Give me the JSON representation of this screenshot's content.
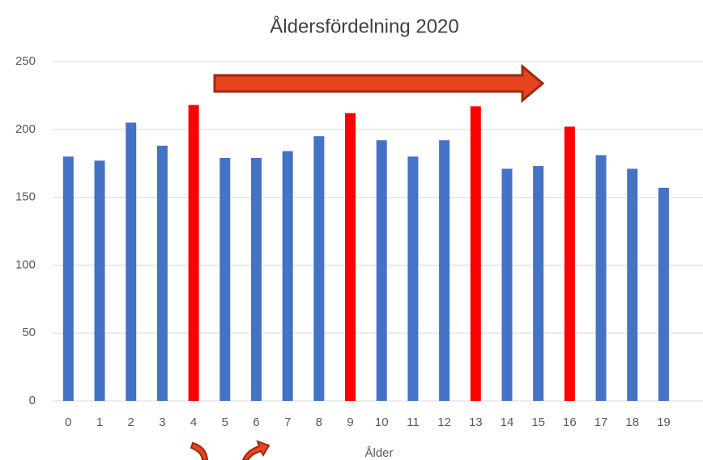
{
  "chart_data": {
    "type": "bar",
    "title": "Åldersfördelning 2020",
    "x_label": "Ålder",
    "categories": [
      "0",
      "1",
      "2",
      "3",
      "4",
      "5",
      "6",
      "7",
      "8",
      "9",
      "10",
      "11",
      "12",
      "13",
      "14",
      "15",
      "16",
      "17",
      "18",
      "19"
    ],
    "values": [
      180,
      177,
      205,
      188,
      218,
      179,
      179,
      184,
      195,
      212,
      192,
      180,
      192,
      217,
      171,
      173,
      202,
      181,
      171,
      157
    ],
    "colors": [
      "#4472c4",
      "#4472c4",
      "#4472c4",
      "#4472c4",
      "#ff0000",
      "#4472c4",
      "#4472c4",
      "#4472c4",
      "#4472c4",
      "#ff0000",
      "#4472c4",
      "#4472c4",
      "#4472c4",
      "#ff0000",
      "#4472c4",
      "#4472c4",
      "#ff0000",
      "#4472c4",
      "#4472c4",
      "#4472c4"
    ],
    "ylim": [
      0,
      250
    ],
    "yticks": [
      0,
      50,
      100,
      150,
      200,
      250
    ],
    "grid": true
  }
}
